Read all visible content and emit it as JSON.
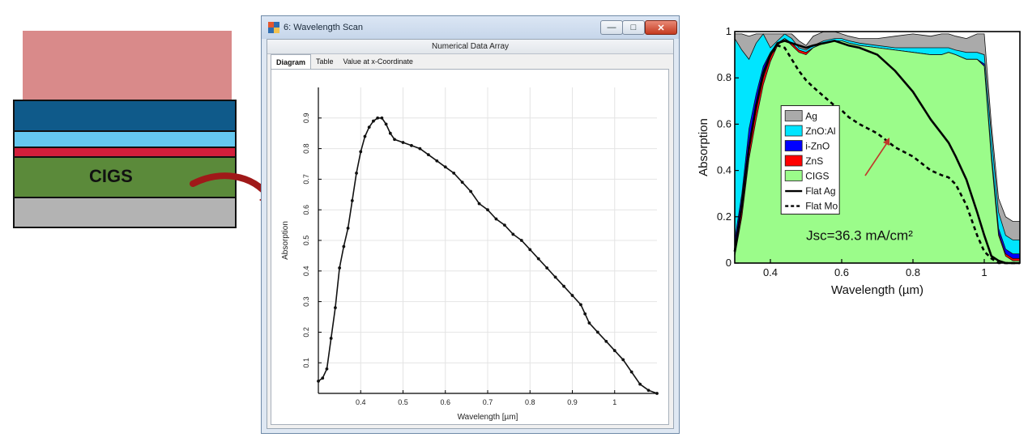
{
  "stack_diagram": {
    "cigs_label": "CIGS",
    "colors": {
      "top": "#d98a8a",
      "window": "#0f5a8a",
      "buffer": "#65c8f0",
      "zns": "#d21f3b",
      "cigs": "#5b8a3a",
      "back": "#b3b3b3",
      "arrow": "#a01919"
    }
  },
  "window": {
    "title": "6: Wavelength Scan",
    "header": "Numerical Data Array",
    "tabs": [
      "Diagram",
      "Table",
      "Value at x-Coordinate"
    ],
    "active_tab": "Diagram",
    "buttons": {
      "minimize": "—",
      "maximize": "□",
      "close": "✕"
    }
  },
  "chart_data": [
    {
      "type": "line",
      "xlabel": "Wavelength [µm]",
      "ylabel": "Absorption",
      "xlim": [
        0.3,
        1.1
      ],
      "ylim": [
        0,
        1.0
      ],
      "xticks": [
        0.4,
        0.5,
        0.6,
        0.7,
        0.8,
        0.9,
        1
      ],
      "yticks": [
        0.1,
        0.2,
        0.3,
        0.4,
        0.5,
        0.6,
        0.7,
        0.8,
        0.9
      ],
      "series": [
        {
          "x": [
            0.3,
            0.31,
            0.32,
            0.33,
            0.34,
            0.35,
            0.36,
            0.37,
            0.38,
            0.39,
            0.4,
            0.41,
            0.42,
            0.43,
            0.44,
            0.45,
            0.46,
            0.47,
            0.48,
            0.5,
            0.52,
            0.54,
            0.56,
            0.58,
            0.6,
            0.62,
            0.64,
            0.66,
            0.68,
            0.7,
            0.72,
            0.74,
            0.76,
            0.78,
            0.8,
            0.82,
            0.84,
            0.86,
            0.88,
            0.9,
            0.92,
            0.93,
            0.94,
            0.96,
            0.98,
            1.0,
            1.02,
            1.04,
            1.06,
            1.08,
            1.1
          ],
          "y": [
            0.04,
            0.05,
            0.08,
            0.18,
            0.28,
            0.41,
            0.48,
            0.54,
            0.63,
            0.72,
            0.79,
            0.84,
            0.87,
            0.89,
            0.9,
            0.9,
            0.88,
            0.85,
            0.83,
            0.82,
            0.81,
            0.8,
            0.78,
            0.76,
            0.74,
            0.72,
            0.69,
            0.66,
            0.62,
            0.6,
            0.57,
            0.55,
            0.52,
            0.5,
            0.47,
            0.44,
            0.41,
            0.38,
            0.35,
            0.32,
            0.29,
            0.26,
            0.23,
            0.2,
            0.17,
            0.14,
            0.11,
            0.07,
            0.03,
            0.01,
            0.0
          ]
        }
      ]
    },
    {
      "type": "area",
      "xlabel": "Wavelength (µm)",
      "ylabel": "Absorption",
      "xlim": [
        0.3,
        1.1
      ],
      "ylim": [
        0,
        1
      ],
      "xticks": [
        0.4,
        0.6,
        0.8,
        1
      ],
      "yticks": [
        0,
        0.2,
        0.4,
        0.6,
        0.8,
        1
      ],
      "annotation": "Jsc=36.3 mA/cm²",
      "legend_position": "center-left",
      "legend": [
        {
          "name": "Ag",
          "color": "#aaaaaa"
        },
        {
          "name": "ZnO:Al",
          "color": "#00e5ff"
        },
        {
          "name": "i-ZnO",
          "color": "#0000ff"
        },
        {
          "name": "ZnS",
          "color": "#ff0000"
        },
        {
          "name": "CIGS",
          "color": "#9bfc8a"
        },
        {
          "name": "Flat Ag",
          "color": "#000000"
        },
        {
          "name": "Flat Mo",
          "color": "#000000"
        }
      ],
      "x": [
        0.3,
        0.32,
        0.34,
        0.36,
        0.38,
        0.4,
        0.42,
        0.44,
        0.46,
        0.48,
        0.5,
        0.52,
        0.55,
        0.58,
        0.6,
        0.62,
        0.65,
        0.7,
        0.75,
        0.8,
        0.85,
        0.88,
        0.9,
        0.92,
        0.95,
        0.98,
        1.0,
        1.02,
        1.04,
        1.06,
        1.08,
        1.1
      ],
      "series": [
        {
          "name": "CIGS",
          "y": [
            0.03,
            0.2,
            0.45,
            0.62,
            0.77,
            0.87,
            0.94,
            0.97,
            0.94,
            0.91,
            0.9,
            0.93,
            0.95,
            0.96,
            0.96,
            0.95,
            0.94,
            0.93,
            0.92,
            0.91,
            0.9,
            0.9,
            0.91,
            0.9,
            0.88,
            0.88,
            0.85,
            0.45,
            0.12,
            0.03,
            0.01,
            0.01
          ]
        },
        {
          "name": "ZnS",
          "y": [
            0.06,
            0.24,
            0.5,
            0.66,
            0.8,
            0.89,
            0.95,
            0.97,
            0.95,
            0.92,
            0.91,
            0.93,
            0.95,
            0.96,
            0.96,
            0.95,
            0.94,
            0.93,
            0.92,
            0.91,
            0.9,
            0.9,
            0.91,
            0.9,
            0.88,
            0.88,
            0.85,
            0.46,
            0.13,
            0.04,
            0.02,
            0.02
          ]
        },
        {
          "name": "i-ZnO",
          "y": [
            0.1,
            0.3,
            0.58,
            0.73,
            0.85,
            0.91,
            0.95,
            0.97,
            0.95,
            0.92,
            0.91,
            0.93,
            0.95,
            0.96,
            0.96,
            0.95,
            0.94,
            0.93,
            0.92,
            0.91,
            0.9,
            0.9,
            0.91,
            0.9,
            0.88,
            0.88,
            0.86,
            0.47,
            0.15,
            0.06,
            0.04,
            0.04
          ]
        },
        {
          "name": "ZnO:Al",
          "y": [
            0.97,
            0.92,
            0.88,
            0.95,
            0.99,
            0.93,
            0.96,
            0.99,
            0.97,
            0.93,
            0.92,
            0.94,
            0.96,
            0.97,
            0.97,
            0.96,
            0.95,
            0.94,
            0.93,
            0.93,
            0.93,
            0.93,
            0.93,
            0.92,
            0.91,
            0.91,
            0.9,
            0.55,
            0.22,
            0.12,
            0.1,
            0.1
          ]
        },
        {
          "name": "Ag",
          "y": [
            0.99,
            0.99,
            0.98,
            0.99,
            0.99,
            0.99,
            0.99,
            0.99,
            0.99,
            0.96,
            0.94,
            0.98,
            1.0,
            1.0,
            0.99,
            0.98,
            0.97,
            0.97,
            0.98,
            0.99,
            0.98,
            0.99,
            0.99,
            0.98,
            0.97,
            0.99,
            0.99,
            0.6,
            0.28,
            0.2,
            0.18,
            0.18
          ]
        },
        {
          "name": "Flat Ag",
          "y": [
            0.05,
            0.25,
            0.5,
            0.68,
            0.82,
            0.9,
            0.95,
            0.96,
            0.95,
            0.94,
            0.93,
            0.94,
            0.95,
            0.96,
            0.95,
            0.94,
            0.93,
            0.9,
            0.83,
            0.74,
            0.62,
            0.56,
            0.52,
            0.46,
            0.36,
            0.22,
            0.12,
            0.03,
            0.01,
            0.0,
            0.0,
            0.0
          ]
        },
        {
          "name": "Flat Mo",
          "y": [
            0.05,
            0.25,
            0.5,
            0.68,
            0.82,
            0.9,
            0.94,
            0.93,
            0.88,
            0.83,
            0.79,
            0.76,
            0.72,
            0.68,
            0.66,
            0.63,
            0.6,
            0.56,
            0.5,
            0.46,
            0.4,
            0.38,
            0.37,
            0.34,
            0.25,
            0.12,
            0.05,
            0.02,
            0.0,
            0.0,
            0.0,
            0.0
          ]
        }
      ]
    }
  ]
}
